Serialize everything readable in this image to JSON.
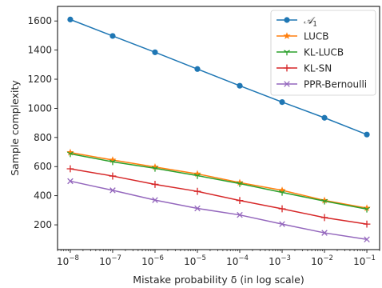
{
  "chart_data": {
    "type": "line",
    "title": "",
    "xlabel": "Mistake probability δ (in log scale)",
    "ylabel": "Sample complexity",
    "xscale": "log",
    "x": [
      1e-08,
      1e-07,
      1e-06,
      1e-05,
      0.0001,
      0.001,
      0.01,
      0.1
    ],
    "xticks": [
      {
        "value": 1e-08,
        "base": "10",
        "exp": "−8"
      },
      {
        "value": 1e-07,
        "base": "10",
        "exp": "−7"
      },
      {
        "value": 1e-06,
        "base": "10",
        "exp": "−6"
      },
      {
        "value": 1e-05,
        "base": "10",
        "exp": "−5"
      },
      {
        "value": 0.0001,
        "base": "10",
        "exp": "−4"
      },
      {
        "value": 0.001,
        "base": "10",
        "exp": "−3"
      },
      {
        "value": 0.01,
        "base": "10",
        "exp": "−2"
      },
      {
        "value": 0.1,
        "base": "10",
        "exp": "−1"
      }
    ],
    "yticks": [
      200,
      400,
      600,
      800,
      1000,
      1200,
      1400,
      1600
    ],
    "ylim": [
      30,
      1700
    ],
    "xlim": [
      5e-09,
      0.2
    ],
    "grid": false,
    "legend": "top-right",
    "series": [
      {
        "name": "𝒜",
        "name_sub": "1",
        "color": "#1f77b4",
        "marker": "circle",
        "values": [
          1610,
          1497,
          1385,
          1270,
          1155,
          1043,
          935,
          820
        ]
      },
      {
        "name": "LUCB",
        "color": "#ff7f0e",
        "marker": "star",
        "values": [
          697,
          645,
          597,
          550,
          490,
          437,
          368,
          315
        ]
      },
      {
        "name": "KL-LUCB",
        "color": "#2ca02c",
        "marker": "tri_down",
        "values": [
          688,
          633,
          588,
          538,
          483,
          423,
          363,
          308
        ]
      },
      {
        "name": "KL-SN",
        "color": "#d62728",
        "marker": "plus",
        "values": [
          585,
          535,
          478,
          430,
          367,
          310,
          250,
          205
        ]
      },
      {
        "name": "PPR-Bernoulli",
        "color": "#9467bd",
        "marker": "x",
        "values": [
          500,
          437,
          370,
          313,
          268,
          205,
          145,
          100
        ]
      }
    ]
  }
}
